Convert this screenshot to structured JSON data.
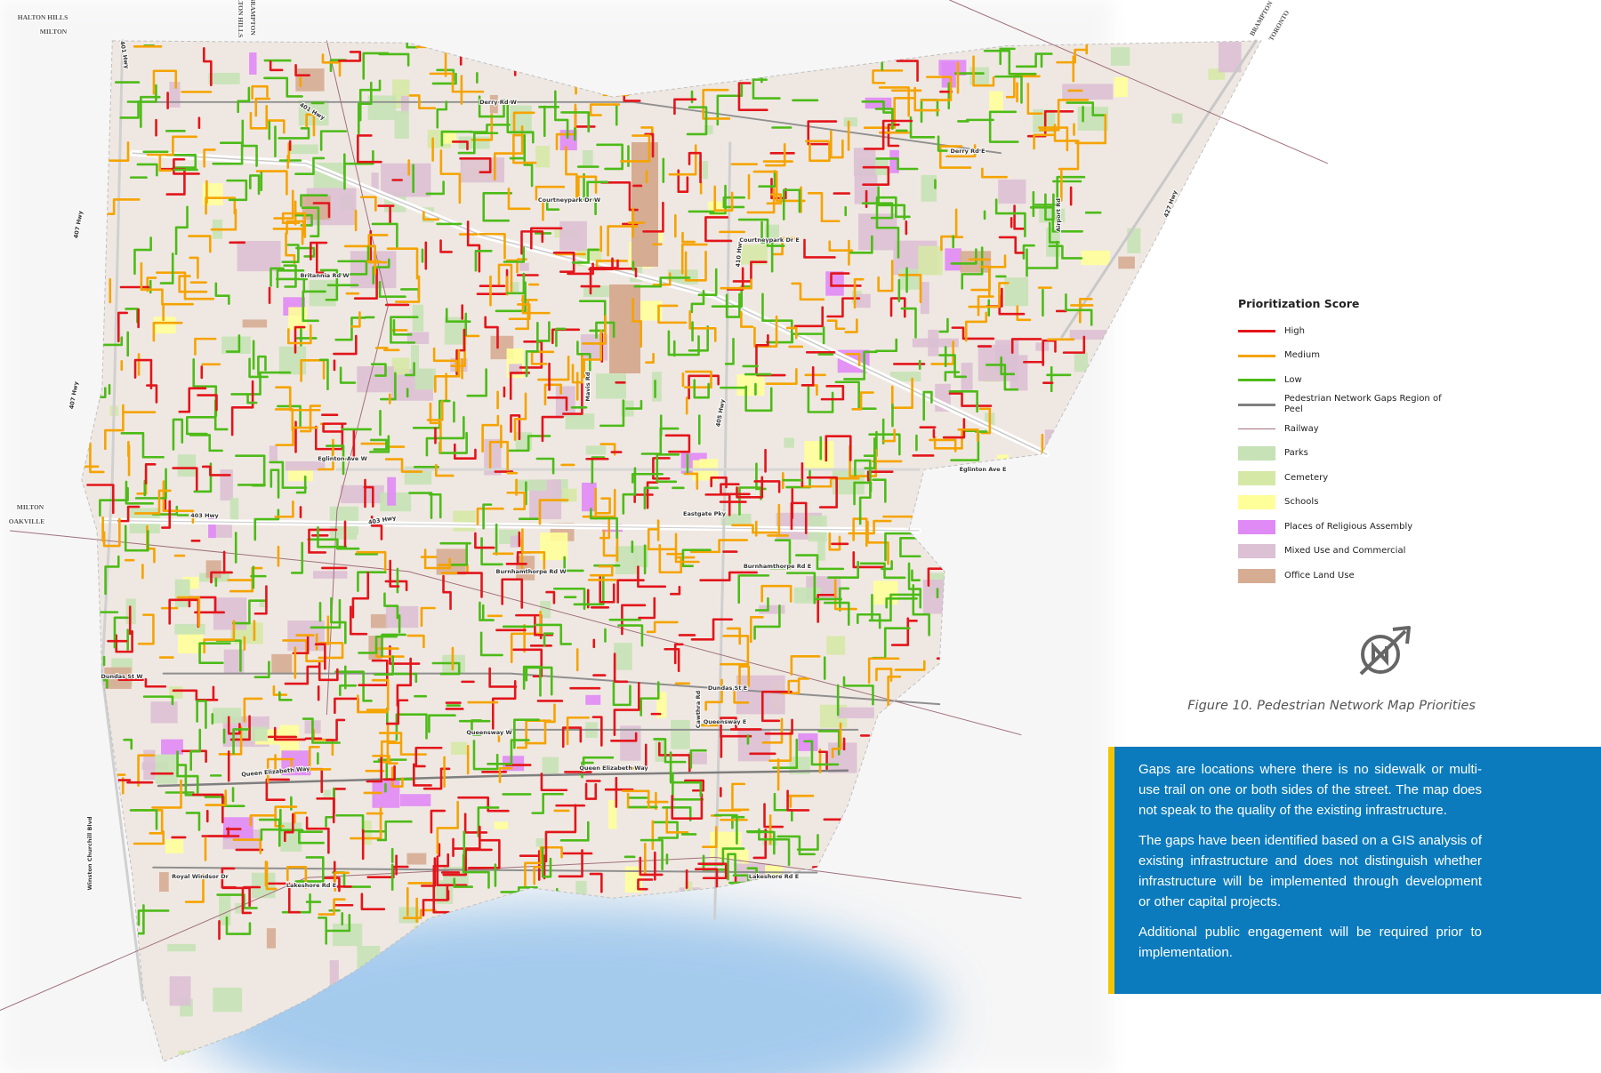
{
  "legend": {
    "title": "Prioritization Score",
    "items": [
      {
        "label": "High",
        "symbol": "line",
        "color": "#e3151b"
      },
      {
        "label": "Medium",
        "symbol": "line",
        "color": "#f5a300"
      },
      {
        "label": "Low",
        "symbol": "line",
        "color": "#4dbb18"
      },
      {
        "label": "Pedestrian Network Gaps Region of Peel",
        "symbol": "line",
        "color": "#7f7f7f"
      },
      {
        "label": "Railway",
        "symbol": "line",
        "color": "#a0707a"
      },
      {
        "label": "Parks",
        "symbol": "patch",
        "color": "#c6e2b6"
      },
      {
        "label": "Cemetery",
        "symbol": "patch",
        "color": "#d6e8a6"
      },
      {
        "label": "Schools",
        "symbol": "patch",
        "color": "#ffff9a"
      },
      {
        "label": "Places of Religious Assembly",
        "symbol": "patch",
        "color": "#e08af5"
      },
      {
        "label": "Mixed Use and Commercial",
        "symbol": "patch",
        "color": "#dcc0d4"
      },
      {
        "label": "Office Land Use",
        "symbol": "patch",
        "color": "#d6ac93"
      }
    ]
  },
  "caption": "Figure 10. Pedestrian Network Map Priorities",
  "info_box": {
    "paragraphs": [
      "Gaps are locations where there is no sidewalk or multi-use trail on one or both sides of the street. The map does not speak to the quality of the existing infrastructure.",
      "The gaps have been identified based on a GIS analysis of existing infrastructure and does not distinguish whether infrastructure will be implemented through development or other capital projects.",
      "Additional public engagement will be required prior to implementation."
    ]
  },
  "map_labels": [
    "HALTON HILLS",
    "MILTON",
    "HALTON HILLS",
    "BRAMPTON",
    "BRAMPTON",
    "TORONTO",
    "MILTON",
    "OAKVILLE",
    "401 Hwy",
    "401 Hwy",
    "403 Hwy",
    "403 Hwy",
    "407 Hwy",
    "407 Hwy",
    "410 Hwy",
    "427 Hwy",
    "405 Hwy",
    "Derry Rd W",
    "Derry Rd E",
    "Britannia Rd W",
    "Courtneypark Dr W",
    "Courtneypark Dr E",
    "Eglinton Ave W",
    "Eglinton Ave E",
    "Burnhamthorpe Rd W",
    "Burnhamthorpe Rd E",
    "Eastgate Pky",
    "Dundas St W",
    "Dundas St E",
    "Queensway W",
    "Queensway E",
    "Queen Elizabeth Way",
    "Queen Elizabeth Way",
    "Royal Windsor Dr",
    "Lakeshore Rd E",
    "Lakeshore Rd E",
    "Winston Churchill Blvd",
    "Airport Rd",
    "Mavis Rd",
    "Cawthra Rd"
  ]
}
